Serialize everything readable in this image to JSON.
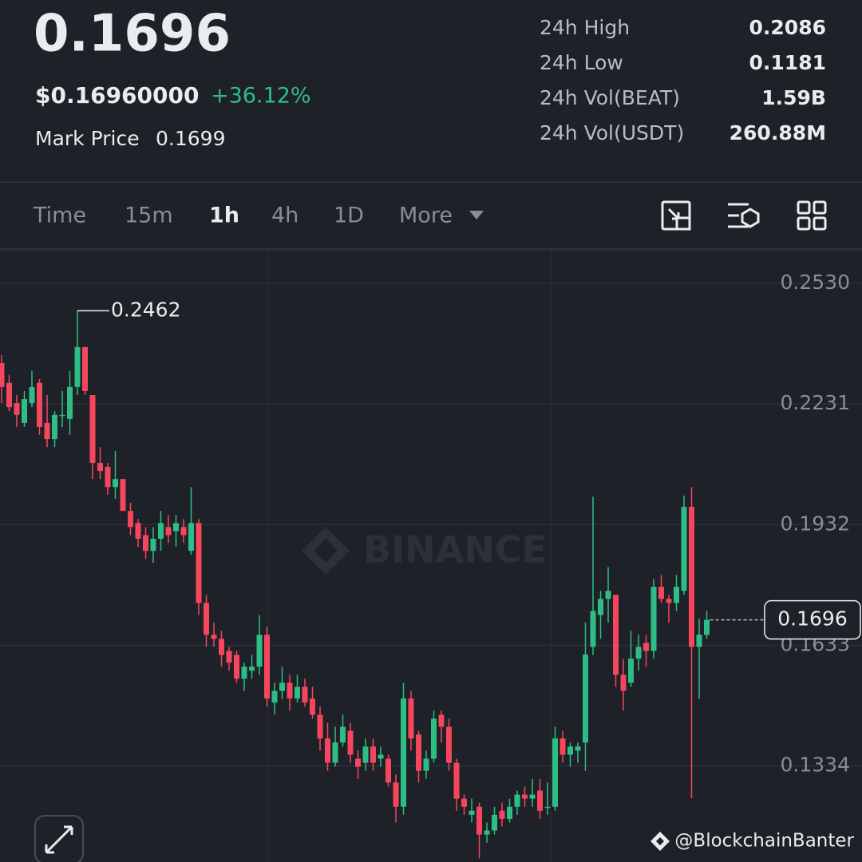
{
  "header": {
    "price": "0.1696",
    "usd_price": "$0.16960000",
    "change": "+36.12%",
    "mark_price_label": "Mark Price",
    "mark_price": "0.1699",
    "stats": [
      {
        "label": "24h High",
        "value": "0.2086"
      },
      {
        "label": "24h Low",
        "value": "0.1181"
      },
      {
        "label": "24h Vol(BEAT)",
        "value": "1.59B"
      },
      {
        "label": "24h Vol(USDT)",
        "value": "260.88M"
      }
    ]
  },
  "toolbar": {
    "intervals": [
      "Time",
      "15m",
      "1h",
      "4h",
      "1D",
      "More"
    ],
    "active": 2
  },
  "chart_data": {
    "type": "candlestick",
    "up_color": "#2ebd85",
    "down_color": "#f6465d",
    "series": [
      {
        "name": "open",
        "values": [
          0.2332,
          0.2283,
          0.2233,
          0.2184,
          0.2233,
          0.2283,
          0.2184,
          0.2144,
          0.2204,
          0.2194,
          0.2273,
          0.2372,
          0.2253,
          0.2085,
          0.2075,
          0.2025,
          0.2045,
          0.1966,
          0.1936,
          0.1906,
          0.1867,
          0.1897,
          0.1926,
          0.1916,
          0.1926,
          0.1867,
          0.1936,
          0.1738,
          0.1659,
          0.1649,
          0.1619,
          0.1609,
          0.155,
          0.157,
          0.158,
          0.1659,
          0.1491,
          0.152,
          0.154,
          0.1501,
          0.153,
          0.1501,
          0.1461,
          0.1402,
          0.1342,
          0.1392,
          0.1421,
          0.1352,
          0.1342,
          0.1382,
          0.1352,
          0.1352,
          0.1293,
          0.1233,
          0.1501,
          0.1412,
          0.1322,
          0.1352,
          0.1461,
          0.1431,
          0.1342,
          0.1253,
          0.1213,
          0.1233,
          0.1164,
          0.1174,
          0.1223,
          0.1203,
          0.1233,
          0.1263,
          0.1253,
          0.1273,
          0.1233,
          0.1233,
          0.1402,
          0.1362,
          0.1372,
          0.1392,
          0.1629,
          0.1708,
          0.1748,
          0.1758,
          0.156,
          0.154,
          0.16,
          0.1639,
          0.1619,
          0.1778,
          0.1748,
          0.1738,
          0.1768,
          0.1976,
          0.1629,
          0.1659
        ]
      },
      {
        "name": "high",
        "values": [
          0.2352,
          0.2303,
          0.2253,
          0.2263,
          0.2313,
          0.2293,
          0.2253,
          0.2213,
          0.2263,
          0.2313,
          0.2462,
          0.2372,
          0.2253,
          0.2124,
          0.2085,
          0.2115,
          0.2045,
          0.1986,
          0.1946,
          0.1926,
          0.1926,
          0.1966,
          0.1956,
          0.1956,
          0.1946,
          0.2025,
          0.1946,
          0.1758,
          0.1689,
          0.1669,
          0.1629,
          0.1619,
          0.159,
          0.1609,
          0.1708,
          0.1679,
          0.154,
          0.158,
          0.156,
          0.156,
          0.155,
          0.153,
          0.1481,
          0.1441,
          0.1431,
          0.1461,
          0.1441,
          0.1372,
          0.1402,
          0.1402,
          0.1382,
          0.1362,
          0.1313,
          0.154,
          0.152,
          0.1421,
          0.1372,
          0.1471,
          0.1471,
          0.1451,
          0.1352,
          0.1263,
          0.1253,
          0.1243,
          0.1194,
          0.1233,
          0.1243,
          0.1253,
          0.1273,
          0.1283,
          0.1302,
          0.1302,
          0.1293,
          0.1431,
          0.1421,
          0.1392,
          0.1392,
          0.1689,
          0.2001,
          0.1768,
          0.1827,
          0.1758,
          0.1599,
          0.1669,
          0.1659,
          0.1659,
          0.1797,
          0.1807,
          0.1758,
          0.1807,
          0.2004,
          0.2025,
          0.1699,
          0.1718
        ]
      },
      {
        "name": "low",
        "values": [
          0.2233,
          0.2213,
          0.2174,
          0.2174,
          0.2223,
          0.2154,
          0.2124,
          0.2124,
          0.2174,
          0.2154,
          0.2253,
          0.2253,
          0.2045,
          0.2045,
          0.2006,
          0.1996,
          0.1966,
          0.1906,
          0.1877,
          0.1847,
          0.1837,
          0.1867,
          0.1887,
          0.1877,
          0.1887,
          0.1857,
          0.1708,
          0.1629,
          0.1629,
          0.158,
          0.157,
          0.154,
          0.152,
          0.155,
          0.156,
          0.1481,
          0.1461,
          0.15,
          0.1471,
          0.1491,
          0.1481,
          0.1451,
          0.1372,
          0.1322,
          0.1332,
          0.1382,
          0.1342,
          0.1302,
          0.1322,
          0.1322,
          0.1332,
          0.1283,
          0.1194,
          0.1213,
          0.1372,
          0.1293,
          0.1302,
          0.1342,
          0.1392,
          0.1322,
          0.1223,
          0.1213,
          0.1194,
          0.1105,
          0.1144,
          0.1164,
          0.1184,
          0.1194,
          0.1213,
          0.1233,
          0.1233,
          0.1203,
          0.1213,
          0.1223,
          0.1342,
          0.1332,
          0.1342,
          0.1322,
          0.1609,
          0.1649,
          0.1689,
          0.153,
          0.1471,
          0.153,
          0.157,
          0.158,
          0.16,
          0.1738,
          0.1689,
          0.1718,
          0.1758,
          0.1254,
          0.15,
          0.1649
        ]
      },
      {
        "name": "close",
        "values": [
          0.2273,
          0.2223,
          0.2204,
          0.2243,
          0.2273,
          0.2174,
          0.2144,
          0.2204,
          0.2204,
          0.2273,
          0.2372,
          0.2263,
          0.2085,
          0.2065,
          0.2025,
          0.2045,
          0.1966,
          0.1926,
          0.1897,
          0.1867,
          0.1897,
          0.1936,
          0.1906,
          0.1936,
          0.1906,
          0.1936,
          0.1738,
          0.1659,
          0.1649,
          0.1609,
          0.159,
          0.155,
          0.158,
          0.158,
          0.1659,
          0.1501,
          0.152,
          0.154,
          0.1501,
          0.153,
          0.1491,
          0.1461,
          0.1402,
          0.1342,
          0.1392,
          0.1431,
          0.1362,
          0.1332,
          0.1382,
          0.1342,
          0.1362,
          0.1293,
          0.1233,
          0.1501,
          0.1402,
          0.1322,
          0.1352,
          0.1451,
          0.1431,
          0.1342,
          0.1253,
          0.1233,
          0.1223,
          0.1164,
          0.1174,
          0.1213,
          0.1203,
          0.1233,
          0.1263,
          0.1253,
          0.1263,
          0.1223,
          0.1233,
          0.1402,
          0.1362,
          0.1382,
          0.1382,
          0.161,
          0.1718,
          0.1748,
          0.1768,
          0.156,
          0.152,
          0.16,
          0.1629,
          0.1619,
          0.1778,
          0.1748,
          0.1738,
          0.1778,
          0.1976,
          0.1629,
          0.1659,
          0.1696
        ]
      }
    ],
    "ylim": [
      0.1096,
      0.2609
    ],
    "yticks": [
      {
        "value": 0.253,
        "label": "0.2530"
      },
      0.2231,
      0.1932,
      0.1633,
      0.1334
    ],
    "grid": true,
    "max_marker": 0.2462,
    "last_price": 0.1696,
    "watermark": "BINANCE"
  },
  "credit": "@BlockchainBanter"
}
